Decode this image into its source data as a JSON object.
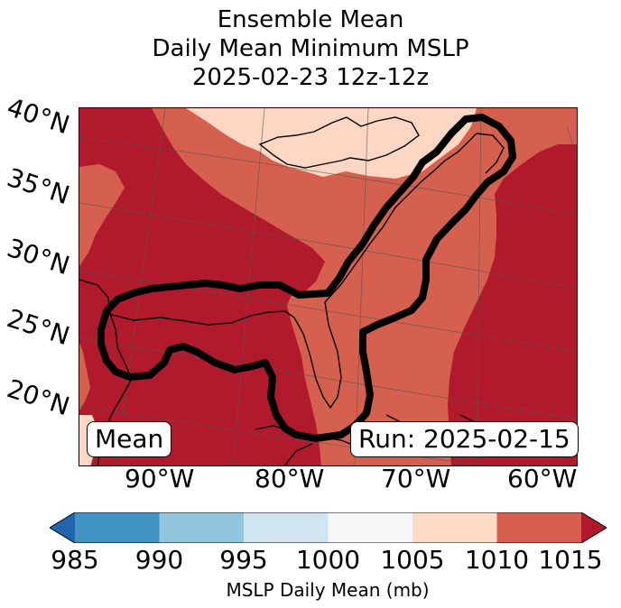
{
  "title": {
    "line1": "Ensemble Mean",
    "line2": "Daily Mean Minimum MSLP",
    "line3": "2025-02-23 12z-12z"
  },
  "map": {
    "lat_labels": [
      "40°N",
      "35°N",
      "30°N",
      "25°N",
      "20°N"
    ],
    "lon_labels": [
      "90°W",
      "80°W",
      "70°W",
      "60°W"
    ],
    "left_box": "Mean",
    "right_box": "Run: 2025-02-15",
    "colors": {
      "c1005_1010": "#fdd7c4",
      "c1010_1015": "#d5604e",
      "c1015_plus": "#b11a2c",
      "outline": "#000000"
    }
  },
  "colorbar": {
    "ticks": [
      "985",
      "990",
      "995",
      "1000",
      "1005",
      "1010",
      "1015"
    ],
    "label": "MSLP Daily Mean (mb)",
    "colors": [
      "#2166ac",
      "#4393c3",
      "#92c5de",
      "#d1e5f0",
      "#f7f7f7",
      "#fddbc7",
      "#d6604d",
      "#b2182b"
    ]
  }
}
